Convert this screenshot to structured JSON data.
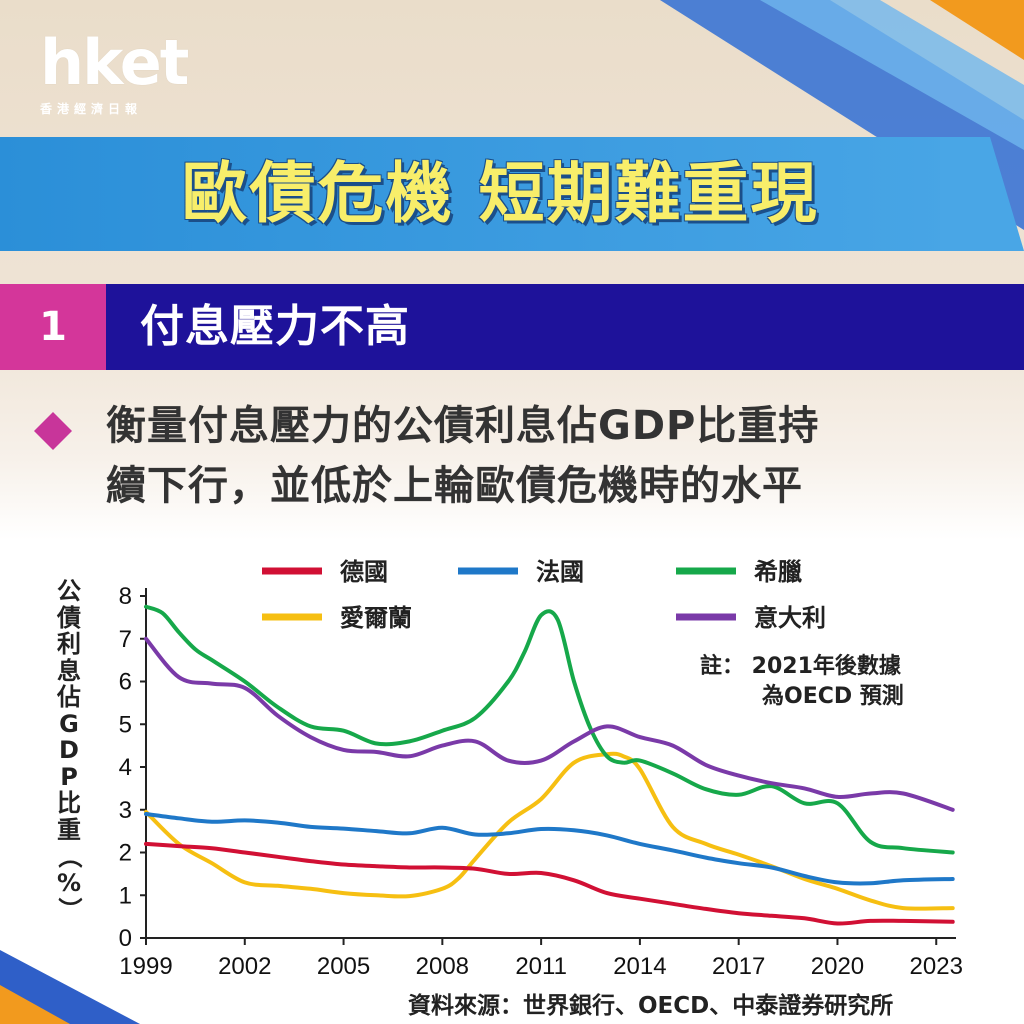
{
  "brand": {
    "logo": "hket",
    "logo_sub": "香港經濟日報"
  },
  "headline": "歐債危機 短期難重現",
  "section": {
    "number": "1",
    "title": "付息壓力不高"
  },
  "lead": {
    "line1": "衡量付息壓力的公債利息佔GDP比重持",
    "line2": "續下行，並低於上輪歐債危機時的水平"
  },
  "note": {
    "line1": "註： 2021年後數據",
    "line2": "為OECD 預測"
  },
  "source": "資料來源：世界銀行、OECD、中泰證券研究所",
  "colors": {
    "germany": "#d11034",
    "france": "#1f78c8",
    "greece": "#16a84a",
    "ireland": "#f6bf12",
    "italy": "#7a3aa8",
    "banner": "#2b8fd8",
    "section_bar": "#1e129a",
    "accent": "#d4369a",
    "headline": "#f8ee6a"
  },
  "chart_data": {
    "type": "line",
    "ylabel": "公債利息佔GDP比重（%）",
    "xlim": [
      1999,
      2023.6
    ],
    "ylim": [
      0,
      8
    ],
    "xticks": [
      1999,
      2002,
      2005,
      2008,
      2011,
      2014,
      2017,
      2020,
      2023
    ],
    "yticks": [
      0,
      1,
      2,
      3,
      4,
      5,
      6,
      7,
      8
    ],
    "legend_position": "top",
    "series": [
      {
        "name": "德國",
        "color_key": "germany",
        "x": [
          1999,
          2000,
          2001,
          2002,
          2003,
          2004,
          2005,
          2006,
          2007,
          2008,
          2009,
          2010,
          2011,
          2012,
          2013,
          2014,
          2015,
          2016,
          2017,
          2018,
          2019,
          2020,
          2021,
          2022,
          2023.5
        ],
        "y": [
          2.2,
          2.15,
          2.1,
          2.0,
          1.9,
          1.8,
          1.72,
          1.68,
          1.65,
          1.65,
          1.62,
          1.5,
          1.52,
          1.35,
          1.05,
          0.92,
          0.8,
          0.68,
          0.58,
          0.52,
          0.46,
          0.34,
          0.4,
          0.4,
          0.38
        ]
      },
      {
        "name": "法國",
        "color_key": "france",
        "x": [
          1999,
          2000,
          2001,
          2002,
          2003,
          2004,
          2005,
          2006,
          2007,
          2008,
          2009,
          2010,
          2011,
          2012,
          2013,
          2014,
          2015,
          2016,
          2017,
          2018,
          2019,
          2020,
          2021,
          2022,
          2023.5
        ],
        "y": [
          2.9,
          2.8,
          2.72,
          2.75,
          2.7,
          2.6,
          2.56,
          2.5,
          2.45,
          2.58,
          2.42,
          2.45,
          2.55,
          2.52,
          2.4,
          2.2,
          2.05,
          1.88,
          1.75,
          1.65,
          1.45,
          1.3,
          1.28,
          1.35,
          1.38
        ]
      },
      {
        "name": "希臘",
        "color_key": "greece",
        "x": [
          1999,
          1999.5,
          2000,
          2000.5,
          2001,
          2002,
          2003,
          2004,
          2005,
          2006,
          2007,
          2008,
          2009,
          2010,
          2010.5,
          2011,
          2011.5,
          2012,
          2012.5,
          2013,
          2013.5,
          2014,
          2015,
          2016,
          2017,
          2018,
          2019,
          2020,
          2021,
          2022,
          2023.5
        ],
        "y": [
          7.75,
          7.6,
          7.15,
          6.75,
          6.5,
          6.0,
          5.4,
          4.95,
          4.85,
          4.55,
          4.6,
          4.85,
          5.15,
          6.0,
          6.7,
          7.55,
          7.45,
          6.0,
          4.9,
          4.25,
          4.1,
          4.15,
          3.85,
          3.48,
          3.35,
          3.55,
          3.15,
          3.15,
          2.25,
          2.1,
          2.0
        ]
      },
      {
        "name": "愛爾蘭",
        "color_key": "ireland",
        "x": [
          1999,
          2000,
          2001,
          2002,
          2003,
          2004,
          2005,
          2006,
          2007,
          2008,
          2008.5,
          2009,
          2010,
          2011,
          2012,
          2013,
          2013.5,
          2014,
          2015,
          2016,
          2017,
          2018,
          2019,
          2020,
          2021,
          2022,
          2023.5
        ],
        "y": [
          2.95,
          2.2,
          1.75,
          1.3,
          1.22,
          1.15,
          1.05,
          1.0,
          0.98,
          1.15,
          1.4,
          1.85,
          2.7,
          3.25,
          4.1,
          4.3,
          4.25,
          3.95,
          2.6,
          2.2,
          1.95,
          1.68,
          1.38,
          1.15,
          0.88,
          0.7,
          0.7
        ]
      },
      {
        "name": "意大利",
        "color_key": "italy",
        "x": [
          1999,
          2000,
          2001,
          2002,
          2003,
          2004,
          2005,
          2006,
          2007,
          2008,
          2009,
          2010,
          2011,
          2012,
          2013,
          2014,
          2015,
          2016,
          2017,
          2018,
          2019,
          2020,
          2021,
          2022,
          2023.5
        ],
        "y": [
          7.0,
          6.1,
          5.95,
          5.85,
          5.2,
          4.7,
          4.4,
          4.35,
          4.25,
          4.5,
          4.6,
          4.15,
          4.15,
          4.6,
          4.95,
          4.7,
          4.5,
          4.05,
          3.8,
          3.62,
          3.5,
          3.3,
          3.38,
          3.38,
          3.0
        ]
      }
    ],
    "legend_rows": [
      [
        "德國",
        "法國",
        "希臘"
      ],
      [
        "愛爾蘭",
        "意大利"
      ]
    ]
  }
}
